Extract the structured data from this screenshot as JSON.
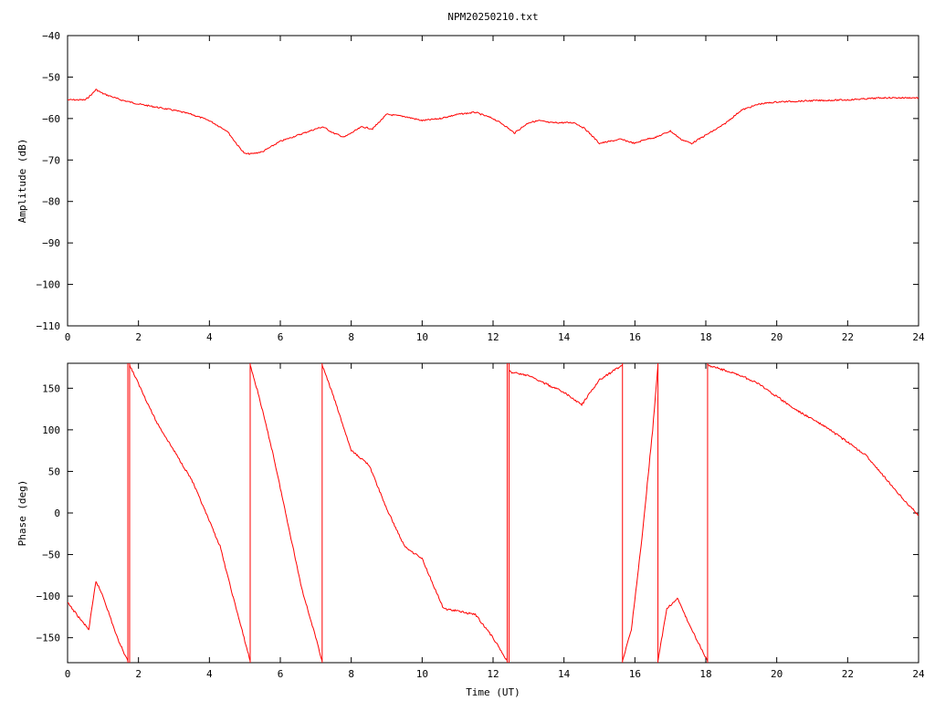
{
  "chart_data": [
    {
      "type": "line",
      "title": "NPM20250210.txt",
      "xlabel": "",
      "ylabel": "Amplitude (dB)",
      "xlim": [
        0,
        24
      ],
      "ylim": [
        -110,
        -40
      ],
      "x_ticks": [
        "0",
        "2",
        "4",
        "6",
        "8",
        "10",
        "12",
        "14",
        "16",
        "18",
        "20",
        "22",
        "24"
      ],
      "y_ticks": [
        "-110",
        "-100",
        "-90",
        "-80",
        "-70",
        "-60",
        "-50",
        "-40"
      ],
      "grid": false,
      "color": "#ff0000",
      "series": [
        {
          "x": [
            0,
            0.5,
            0.7,
            0.8,
            1.0,
            1.5,
            2.0,
            3.0,
            3.5,
            4.0,
            4.5,
            4.8,
            5.0,
            5.2,
            5.5,
            6.0,
            6.5,
            7.0,
            7.2,
            7.5,
            7.8,
            8.0,
            8.3,
            8.6,
            9.0,
            9.5,
            10.0,
            10.5,
            11.0,
            11.5,
            12.0,
            12.3,
            12.6,
            13.0,
            13.3,
            13.6,
            14.0,
            14.3,
            14.6,
            15.0,
            15.3,
            15.6,
            16.0,
            16.3,
            16.6,
            17.0,
            17.3,
            17.6,
            18.0,
            18.5,
            19.0,
            19.5,
            20.0,
            21.0,
            22.0,
            23.0,
            24.0
          ],
          "y": [
            -55.5,
            -55.5,
            -54,
            -53,
            -54,
            -55.5,
            -56.5,
            -58,
            -59,
            -60.5,
            -63,
            -66.5,
            -68.5,
            -68.5,
            -68,
            -65.5,
            -64,
            -62.5,
            -62,
            -63.5,
            -64.5,
            -63.5,
            -62,
            -62.5,
            -59,
            -59.5,
            -60.5,
            -60,
            -59,
            -58.5,
            -60,
            -61.5,
            -63.5,
            -61,
            -60.5,
            -61,
            -61,
            -61,
            -62.5,
            -66,
            -65.5,
            -65,
            -66,
            -65,
            -64.5,
            -63,
            -65,
            -66,
            -64,
            -61.5,
            -58,
            -56.5,
            -56,
            -55.7,
            -55.5,
            -55,
            -55
          ]
        }
      ]
    },
    {
      "type": "line",
      "title": "",
      "xlabel": "Time (UT)",
      "ylabel": "Phase (deg)",
      "xlim": [
        0,
        24
      ],
      "ylim": [
        -180,
        180
      ],
      "x_ticks": [
        "0",
        "2",
        "4",
        "6",
        "8",
        "10",
        "12",
        "14",
        "16",
        "18",
        "20",
        "22",
        "24"
      ],
      "y_ticks": [
        "-150",
        "-100",
        "-50",
        "0",
        "50",
        "100",
        "150"
      ],
      "grid": false,
      "color": "#ff0000",
      "wrap_lines_x": [
        1.7,
        1.75,
        5.15,
        7.18,
        12.4,
        12.45,
        15.65,
        16.65,
        18.05
      ],
      "series": [
        {
          "segments": [
            {
              "x": [
                0,
                0.4,
                0.6,
                0.8,
                1.0,
                1.4,
                1.7
              ],
              "y": [
                -108,
                -130,
                -140,
                -82,
                -100,
                -150,
                -178
              ]
            },
            {
              "x": [
                1.75,
                2.5,
                3.0,
                3.5,
                4.0,
                4.3,
                4.6,
                5.15
              ],
              "y": [
                178,
                110,
                75,
                40,
                -10,
                -40,
                -90,
                -178
              ]
            },
            {
              "x": [
                5.15,
                5.4,
                5.8,
                6.2,
                6.6,
                7.0,
                7.18
              ],
              "y": [
                178,
                140,
                70,
                -10,
                -90,
                -150,
                -178
              ]
            },
            {
              "x": [
                7.18,
                7.5,
                8.0,
                8.5,
                9.0,
                9.5,
                10.0,
                10.3,
                10.6,
                11.0,
                11.5,
                12.0,
                12.4
              ],
              "y": [
                178,
                140,
                75,
                58,
                5,
                -40,
                -55,
                -85,
                -115,
                -118,
                -122,
                -150,
                -178
              ]
            },
            {
              "x": [
                12.45,
                13.0,
                13.5,
                14.0,
                14.5,
                15.0,
                15.65
              ],
              "y": [
                170,
                165,
                155,
                145,
                130,
                160,
                178
              ]
            },
            {
              "x": [
                15.65,
                15.9,
                16.2,
                16.5,
                16.65
              ],
              "y": [
                -178,
                -140,
                -30,
                100,
                178
              ]
            },
            {
              "x": [
                16.65,
                16.9,
                17.2,
                17.6,
                18.05
              ],
              "y": [
                -178,
                -115,
                -103,
                -140,
                -178
              ]
            },
            {
              "x": [
                18.05,
                18.5,
                19.0,
                19.5,
                20.0,
                20.5,
                21.0,
                21.5,
                22.0,
                22.5,
                23.0,
                23.5,
                24.0
              ],
              "y": [
                178,
                172,
                165,
                155,
                140,
                125,
                113,
                100,
                85,
                70,
                45,
                20,
                -3
              ]
            }
          ]
        }
      ]
    }
  ]
}
